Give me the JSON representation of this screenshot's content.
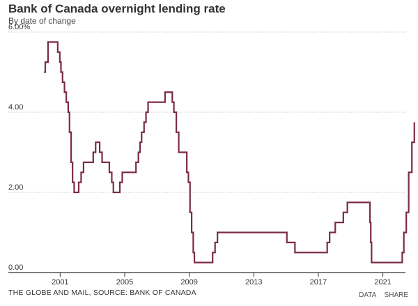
{
  "header": {
    "title": "Bank of Canada overnight lending rate",
    "subtitle": "By date of change"
  },
  "footer": {
    "source": "THE GLOBE AND MAIL, SOURCE: BANK OF CANADA",
    "data_link": "DATA",
    "share_link": "SHARE"
  },
  "colors": {
    "line": "#7b2a4a",
    "grid": "#bfbfbf",
    "axis": "#333333"
  },
  "chart_data": {
    "type": "line",
    "step": true,
    "title": "Bank of Canada overnight lending rate",
    "subtitle": "By date of change",
    "xlim": [
      1999.0,
      2022.4
    ],
    "ylim": [
      0,
      6.0
    ],
    "y_ticks": [
      {
        "value": 0,
        "label": "0.00"
      },
      {
        "value": 2,
        "label": "2.00"
      },
      {
        "value": 4,
        "label": "4.00"
      },
      {
        "value": 6,
        "label": "6.00%"
      }
    ],
    "x_ticks": [
      {
        "value": 2001,
        "label": "2001"
      },
      {
        "value": 2005,
        "label": "2005"
      },
      {
        "value": 2009,
        "label": "2009"
      },
      {
        "value": 2013,
        "label": "2013"
      },
      {
        "value": 2017,
        "label": "2017"
      },
      {
        "value": 2021,
        "label": "2021"
      }
    ],
    "grid": true,
    "series": [
      {
        "points": [
          [
            2000.0,
            5.0
          ],
          [
            2000.08,
            5.25
          ],
          [
            2000.25,
            5.75
          ],
          [
            2000.85,
            5.5
          ],
          [
            2000.98,
            5.25
          ],
          [
            2001.05,
            5.0
          ],
          [
            2001.15,
            4.75
          ],
          [
            2001.27,
            4.5
          ],
          [
            2001.38,
            4.25
          ],
          [
            2001.5,
            4.0
          ],
          [
            2001.58,
            3.5
          ],
          [
            2001.68,
            2.75
          ],
          [
            2001.77,
            2.25
          ],
          [
            2001.87,
            2.0
          ],
          [
            2002.15,
            2.25
          ],
          [
            2002.3,
            2.5
          ],
          [
            2002.45,
            2.75
          ],
          [
            2003.05,
            3.0
          ],
          [
            2003.2,
            3.25
          ],
          [
            2003.45,
            3.0
          ],
          [
            2003.6,
            2.75
          ],
          [
            2004.05,
            2.5
          ],
          [
            2004.2,
            2.25
          ],
          [
            2004.3,
            2.0
          ],
          [
            2004.7,
            2.25
          ],
          [
            2004.85,
            2.5
          ],
          [
            2005.7,
            2.75
          ],
          [
            2005.85,
            3.0
          ],
          [
            2005.95,
            3.25
          ],
          [
            2006.05,
            3.5
          ],
          [
            2006.2,
            3.75
          ],
          [
            2006.32,
            4.0
          ],
          [
            2006.45,
            4.25
          ],
          [
            2007.5,
            4.5
          ],
          [
            2007.95,
            4.25
          ],
          [
            2008.05,
            4.0
          ],
          [
            2008.2,
            3.5
          ],
          [
            2008.35,
            3.0
          ],
          [
            2008.85,
            2.5
          ],
          [
            2008.95,
            2.25
          ],
          [
            2009.05,
            1.5
          ],
          [
            2009.15,
            1.0
          ],
          [
            2009.25,
            0.5
          ],
          [
            2009.32,
            0.25
          ],
          [
            2010.45,
            0.5
          ],
          [
            2010.6,
            0.75
          ],
          [
            2010.75,
            1.0
          ],
          [
            2015.05,
            0.75
          ],
          [
            2015.55,
            0.5
          ],
          [
            2017.55,
            0.75
          ],
          [
            2017.7,
            1.0
          ],
          [
            2018.05,
            1.25
          ],
          [
            2018.55,
            1.5
          ],
          [
            2018.8,
            1.75
          ],
          [
            2020.2,
            1.25
          ],
          [
            2020.25,
            0.75
          ],
          [
            2020.3,
            0.25
          ],
          [
            2022.2,
            0.5
          ],
          [
            2022.3,
            1.0
          ],
          [
            2022.45,
            1.5
          ],
          [
            2022.6,
            2.5
          ],
          [
            2022.8,
            3.25
          ],
          [
            2022.95,
            3.75
          ]
        ]
      }
    ]
  }
}
